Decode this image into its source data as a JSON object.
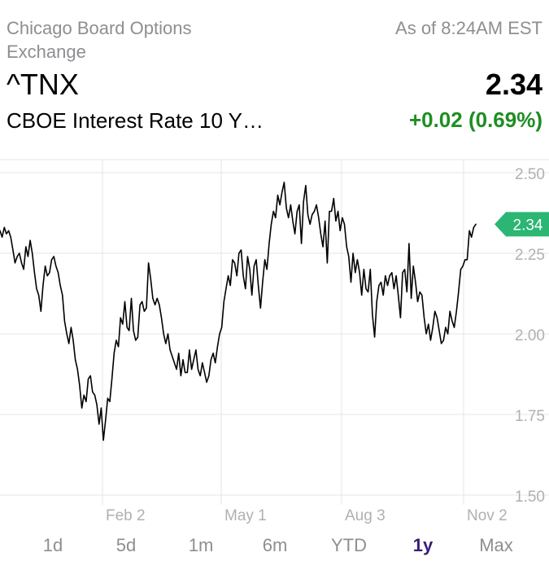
{
  "quote": {
    "exchange": "Chicago Board Options Exchange",
    "as_of": "As of 8:24AM EST",
    "symbol": "^TNX",
    "price": "2.34",
    "name": "CBOE Interest Rate 10 Y…",
    "change": "+0.02 (0.69%)",
    "change_color": "#1e8e23"
  },
  "ranges": [
    {
      "label": "1d",
      "active": false
    },
    {
      "label": "5d",
      "active": false
    },
    {
      "label": "1m",
      "active": false
    },
    {
      "label": "6m",
      "active": false
    },
    {
      "label": "YTD",
      "active": false
    },
    {
      "label": "1y",
      "active": true
    },
    {
      "label": "Max",
      "active": false
    }
  ],
  "colors": {
    "line": "#000000",
    "grid": "#e5e5ea",
    "tick_text": "#b0b0b5",
    "badge": "#2bb673",
    "active_range": "#3a1c78"
  },
  "chart_data": {
    "type": "line",
    "title": "",
    "xlabel": "",
    "ylabel": "",
    "ylim": [
      1.5,
      2.5
    ],
    "yticks": [
      2.5,
      2.25,
      2.0,
      1.75,
      1.5
    ],
    "ytick_labels": [
      "2.50",
      "2.25",
      "2.00",
      "1.75",
      "1.50"
    ],
    "xtick_labels": [
      "Feb 2",
      "May 1",
      "Aug 3",
      "Nov 2"
    ],
    "current_value_label": "2.34",
    "grid": true,
    "series": [
      {
        "values": [
          2.32,
          2.3,
          2.33,
          2.31,
          2.32,
          2.3,
          2.26,
          2.22,
          2.24,
          2.25,
          2.22,
          2.2,
          2.27,
          2.24,
          2.29,
          2.25,
          2.19,
          2.14,
          2.12,
          2.07,
          2.15,
          2.21,
          2.18,
          2.19,
          2.23,
          2.24,
          2.21,
          2.19,
          2.15,
          2.12,
          2.04,
          2.0,
          1.97,
          2.02,
          1.98,
          1.92,
          1.89,
          1.84,
          1.77,
          1.81,
          1.79,
          1.86,
          1.87,
          1.82,
          1.81,
          1.78,
          1.72,
          1.77,
          1.67,
          1.73,
          1.8,
          1.79,
          1.86,
          1.94,
          1.98,
          1.96,
          2.05,
          2.03,
          2.1,
          2.02,
          2.01,
          2.11,
          2.01,
          1.98,
          1.99,
          2.09,
          2.1,
          2.07,
          2.08,
          2.22,
          2.17,
          2.11,
          2.09,
          2.11,
          2.09,
          2.05,
          2.0,
          1.97,
          2.0,
          1.95,
          1.93,
          1.91,
          1.89,
          1.94,
          1.87,
          1.92,
          1.88,
          1.88,
          1.95,
          1.89,
          1.92,
          1.95,
          1.89,
          1.87,
          1.91,
          1.88,
          1.85,
          1.87,
          1.92,
          1.94,
          1.91,
          1.96,
          2.0,
          2.02,
          2.1,
          2.14,
          2.18,
          2.15,
          2.23,
          2.22,
          2.18,
          2.25,
          2.26,
          2.18,
          2.14,
          2.24,
          2.2,
          2.12,
          2.21,
          2.23,
          2.15,
          2.08,
          2.16,
          2.23,
          2.2,
          2.28,
          2.34,
          2.38,
          2.36,
          2.43,
          2.4,
          2.44,
          2.47,
          2.39,
          2.36,
          2.4,
          2.35,
          2.31,
          2.38,
          2.4,
          2.28,
          2.41,
          2.46,
          2.37,
          2.34,
          2.37,
          2.38,
          2.4,
          2.36,
          2.31,
          2.27,
          2.35,
          2.22,
          2.38,
          2.38,
          2.42,
          2.35,
          2.38,
          2.32,
          2.36,
          2.34,
          2.27,
          2.24,
          2.16,
          2.25,
          2.19,
          2.23,
          2.19,
          2.12,
          2.2,
          2.14,
          2.13,
          2.2,
          2.06,
          1.99,
          2.1,
          2.15,
          2.16,
          2.12,
          2.18,
          2.15,
          2.18,
          2.19,
          2.14,
          2.18,
          2.12,
          2.05,
          2.19,
          2.2,
          2.13,
          2.28,
          2.11,
          2.21,
          2.16,
          2.1,
          2.13,
          2.12,
          2.05,
          2.0,
          2.03,
          1.98,
          2.02,
          2.07,
          2.05,
          2.01,
          1.97,
          1.98,
          2.02,
          2.0,
          2.07,
          2.04,
          2.02,
          2.07,
          2.13,
          2.2,
          2.21,
          2.23,
          2.23,
          2.32,
          2.3,
          2.33,
          2.34
        ]
      }
    ]
  }
}
